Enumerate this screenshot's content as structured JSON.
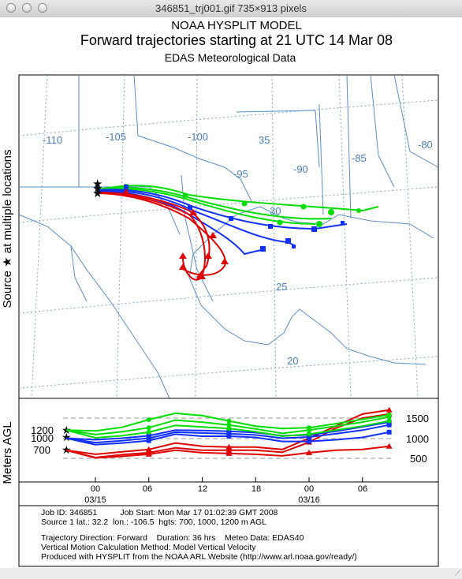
{
  "window": {
    "title": "346851_trj001.gif 735×913 pixels"
  },
  "header": {
    "line1": "NOAA HYSPLIT MODEL",
    "line2": "Forward trajectories starting at 21 UTC 14 Mar 08",
    "line3": "EDAS Meteorological Data"
  },
  "side_labels": {
    "map": "Source ★ at multiple locations",
    "profile": "Meters AGL"
  },
  "map": {
    "lon_labels": [
      "-110",
      "-105",
      "-100",
      "-95",
      "-90",
      "-85",
      "-80"
    ],
    "lat_labels": [
      "35",
      "30",
      "25",
      "20"
    ]
  },
  "chart_data": {
    "type": "line",
    "source": {
      "lat": 32.2,
      "lon": -106.5,
      "heights_m_agl": [
        700,
        1000,
        1200
      ]
    },
    "x_label_times_hours": [
      0,
      3,
      9,
      15,
      21,
      27,
      33
    ],
    "x_tick_labels": [
      "00",
      "06",
      "12",
      "18",
      "00",
      "06"
    ],
    "x_date_labels": [
      "03/15",
      "03/16"
    ],
    "y_tick_labels": [
      "1500",
      "1000",
      "500"
    ],
    "source_height_labels": [
      "1200",
      "1000",
      "700"
    ],
    "series_colors": {
      "700": "#e00000",
      "1000": "#1030ff",
      "1200": "#00dd00"
    },
    "series": [
      {
        "height": 700,
        "color": "#e00000",
        "hours": [
          0,
          3,
          6,
          9,
          12,
          15,
          18,
          21,
          24,
          27,
          30,
          33,
          36
        ],
        "heights": [
          700,
          510,
          550,
          600,
          700,
          640,
          620,
          600,
          560,
          640,
          700,
          720,
          800
        ]
      },
      {
        "height": 700,
        "color": "#e00000",
        "hours": [
          0,
          3,
          6,
          9,
          12,
          15,
          18,
          21,
          24,
          27,
          30,
          33,
          36
        ],
        "heights": [
          700,
          520,
          590,
          640,
          760,
          700,
          700,
          700,
          650,
          900,
          1250,
          1500,
          1600
        ]
      },
      {
        "height": 700,
        "color": "#e00000",
        "hours": [
          0,
          3,
          6,
          9,
          12,
          15,
          18,
          21,
          24,
          27,
          30,
          33,
          36
        ],
        "heights": [
          700,
          600,
          660,
          720,
          880,
          800,
          780,
          780,
          720,
          1000,
          1300,
          1600,
          1700
        ]
      },
      {
        "height": 1000,
        "color": "#1030ff",
        "hours": [
          0,
          3,
          6,
          9,
          12,
          15,
          18,
          21,
          24,
          27,
          30,
          33,
          36
        ],
        "heights": [
          1000,
          840,
          880,
          940,
          1100,
          1050,
          1050,
          1020,
          920,
          920,
          960,
          1020,
          1150
        ]
      },
      {
        "height": 1000,
        "color": "#1030ff",
        "hours": [
          0,
          3,
          6,
          9,
          12,
          15,
          18,
          21,
          24,
          27,
          30,
          33,
          36
        ],
        "heights": [
          1000,
          890,
          940,
          1000,
          1150,
          1130,
          1110,
          1080,
          1000,
          1030,
          1110,
          1200,
          1330
        ]
      },
      {
        "height": 1000,
        "color": "#1030ff",
        "hours": [
          0,
          3,
          6,
          9,
          12,
          15,
          18,
          21,
          24,
          27,
          30,
          33,
          36
        ],
        "heights": [
          1000,
          960,
          1000,
          1060,
          1200,
          1190,
          1170,
          1140,
          1060,
          1080,
          1170,
          1280,
          1400
        ]
      },
      {
        "height": 1200,
        "color": "#00dd00",
        "hours": [
          0,
          3,
          6,
          9,
          12,
          15,
          18,
          21,
          24,
          27,
          30,
          33,
          36
        ],
        "heights": [
          1200,
          1010,
          1060,
          1150,
          1320,
          1280,
          1240,
          1160,
          1050,
          1100,
          1200,
          1300,
          1430
        ]
      },
      {
        "height": 1200,
        "color": "#00dd00",
        "hours": [
          0,
          3,
          6,
          9,
          12,
          15,
          18,
          21,
          24,
          27,
          30,
          33,
          36
        ],
        "heights": [
          1200,
          1090,
          1160,
          1260,
          1450,
          1400,
          1330,
          1230,
          1120,
          1200,
          1300,
          1400,
          1530
        ]
      },
      {
        "height": 1200,
        "color": "#00dd00",
        "hours": [
          0,
          3,
          6,
          9,
          12,
          15,
          18,
          21,
          24,
          27,
          30,
          33,
          36
        ],
        "heights": [
          1200,
          1180,
          1270,
          1460,
          1620,
          1560,
          1430,
          1300,
          1240,
          1260,
          1360,
          1470,
          1580
        ]
      }
    ]
  },
  "trajectories": {
    "description_lines": []
  },
  "footer": {
    "line1": "Job ID: 346851          Job Start: Mon Mar 17 01:02:39 GMT 2008",
    "line2": "Source 1 lat.: 32.2  lon.: -106.5  hgts: 700, 1000, 1200 m AGL",
    "line3": "Trajectory Direction: Forward    Duration: 36 hrs    Meteo Data: EDAS40",
    "line4": "Vertical Motion Calculation Method: Model Vertical Velocity",
    "line5": "Produced with HYSPLIT from the NOAA ARL Website (http://www.arl.noaa.gov/ready/)"
  }
}
